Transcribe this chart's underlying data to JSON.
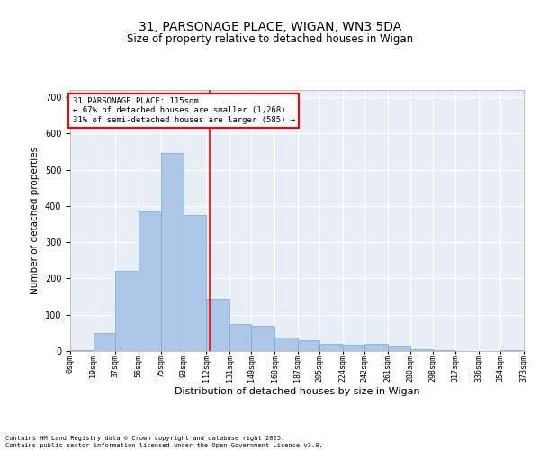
{
  "title_line1": "31, PARSONAGE PLACE, WIGAN, WN3 5DA",
  "title_line2": "Size of property relative to detached houses in Wigan",
  "xlabel": "Distribution of detached houses by size in Wigan",
  "ylabel": "Number of detached properties",
  "annotation_line1": "31 PARSONAGE PLACE: 115sqm",
  "annotation_line2": "← 67% of detached houses are smaller (1,268)",
  "annotation_line3": "31% of semi-detached houses are larger (585) →",
  "property_size": 115,
  "bin_edges": [
    0,
    19,
    37,
    56,
    75,
    93,
    112,
    131,
    149,
    168,
    187,
    205,
    224,
    242,
    261,
    280,
    298,
    317,
    336,
    354,
    373
  ],
  "bin_labels": [
    "0sqm",
    "19sqm",
    "37sqm",
    "56sqm",
    "75sqm",
    "93sqm",
    "112sqm",
    "131sqm",
    "149sqm",
    "168sqm",
    "187sqm",
    "205sqm",
    "224sqm",
    "242sqm",
    "261sqm",
    "280sqm",
    "298sqm",
    "317sqm",
    "336sqm",
    "354sqm",
    "373sqm"
  ],
  "bar_heights": [
    2,
    50,
    220,
    385,
    545,
    375,
    145,
    75,
    70,
    38,
    30,
    20,
    18,
    20,
    15,
    5,
    2,
    0,
    0,
    2
  ],
  "bar_color": "#aec6e8",
  "bar_edge_color": "#7aa8cc",
  "vline_color": "red",
  "vline_x": 115,
  "ylim": [
    0,
    720
  ],
  "yticks": [
    0,
    100,
    200,
    300,
    400,
    500,
    600,
    700
  ],
  "background_color": "#e8eef8",
  "grid_color": "#ffffff",
  "footer_line1": "Contains HM Land Registry data © Crown copyright and database right 2025.",
  "footer_line2": "Contains public sector information licensed under the Open Government Licence v3.0."
}
